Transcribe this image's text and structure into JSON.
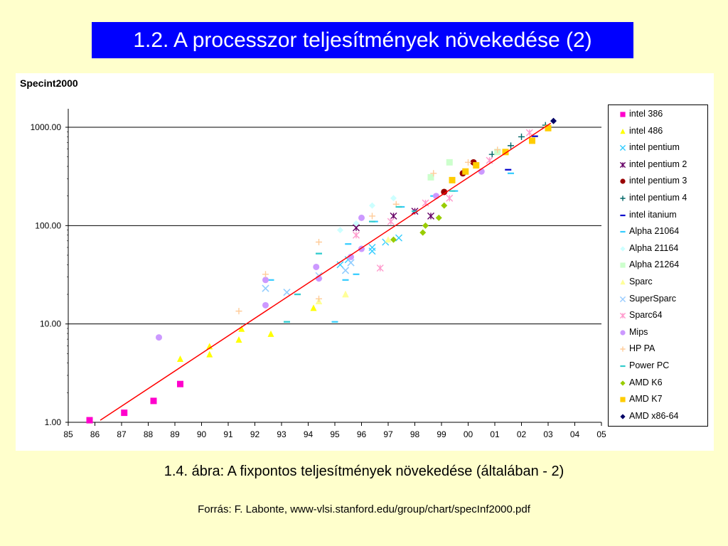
{
  "slide": {
    "title": "1.2. A processzor teljesítmények növekedése (2)",
    "caption": "1.4. ábra: A fixpontos teljesítmények növekedése (általában - 2)",
    "source": "Forrás: F. Labonte, www-vlsi.stanford.edu/group/chart/specInf2000.pdf",
    "title_bg": "#0000FF",
    "background": "#FFFFCC"
  },
  "chart_data": {
    "type": "scatter",
    "title": "Specint2000",
    "yscale": "log",
    "ylim": [
      1,
      1300
    ],
    "xlim": [
      85,
      105
    ],
    "y_ticks": [
      "1000.00",
      "100.00",
      "10.00",
      "1.00"
    ],
    "x_ticks": [
      "85",
      "86",
      "87",
      "88",
      "89",
      "90",
      "91",
      "92",
      "93",
      "94",
      "95",
      "96",
      "97",
      "98",
      "99",
      "00",
      "01",
      "02",
      "03",
      "04",
      "05"
    ],
    "grid": "horizontal",
    "legend_position": "right",
    "trend_line": {
      "color": "#FF0000",
      "x": [
        86.2,
        103.1
      ],
      "y": [
        1.05,
        1100
      ]
    },
    "series": [
      {
        "name": "intel 386",
        "marker": "square",
        "color": "#FF00CC",
        "x": [
          85.8,
          87.1,
          88.2,
          89.2
        ],
        "y": [
          1.05,
          1.25,
          1.65,
          2.45
        ]
      },
      {
        "name": "intel 486",
        "marker": "triangle",
        "color": "#FFFF00",
        "x": [
          89.2,
          90.3,
          90.3,
          91.4,
          91.5,
          92.6,
          94.2,
          94.4,
          95.4
        ],
        "y": [
          4.4,
          4.9,
          5.9,
          6.9,
          8.9,
          7.9,
          14.5,
          17,
          20
        ]
      },
      {
        "name": "intel pentium",
        "marker": "x",
        "color": "#33CCFF",
        "x": [
          92.4,
          93.2,
          95.2,
          95.4,
          95.5,
          95.6,
          96.4,
          96.4,
          96.9,
          97.4
        ],
        "y": [
          23,
          21,
          40,
          35,
          45,
          42,
          55,
          60,
          68,
          75
        ]
      },
      {
        "name": "intel pentium 2",
        "marker": "star",
        "color": "#660066",
        "x": [
          95.8,
          97.2,
          98.0,
          98.6
        ],
        "y": [
          95,
          125,
          140,
          125
        ]
      },
      {
        "name": "intel pentium 3",
        "marker": "circle",
        "color": "#990000",
        "x": [
          99.1,
          99.8,
          100.2
        ],
        "y": [
          220,
          340,
          440
        ]
      },
      {
        "name": "intel pentium 4",
        "marker": "plus",
        "color": "#006666",
        "x": [
          100.9,
          101.6,
          102.0,
          102.9
        ],
        "y": [
          530,
          650,
          800,
          1050
        ]
      },
      {
        "name": "intel itanium",
        "marker": "dash",
        "color": "#0000CC",
        "x": [
          101.5,
          102.5
        ],
        "y": [
          370,
          810
        ]
      },
      {
        "name": "Alpha 21064",
        "marker": "dash",
        "color": "#33CCFF",
        "x": [
          92.6,
          93.2,
          93.6,
          94.4,
          95.0,
          95.4,
          95.5,
          95.8,
          96.5,
          97.5,
          98.7,
          99.5,
          101.6
        ],
        "y": [
          28,
          10.5,
          20,
          52,
          10.5,
          28,
          65,
          32,
          110,
          155,
          200,
          225,
          340
        ]
      },
      {
        "name": "Alpha 21164",
        "marker": "diamond",
        "color": "#CCFFFF",
        "x": [
          95.2,
          95.8,
          96.4,
          97.2
        ],
        "y": [
          90,
          105,
          160,
          190
        ]
      },
      {
        "name": "Alpha 21264",
        "marker": "square",
        "color": "#CCFFCC",
        "x": [
          98.6,
          99.3,
          101.1
        ],
        "y": [
          310,
          440,
          560
        ]
      },
      {
        "name": "Sparc",
        "marker": "triangle",
        "color": "#FFFF99",
        "x": [
          94.4,
          95.4,
          97.0
        ],
        "y": [
          17,
          20,
          72
        ]
      },
      {
        "name": "SuperSparc",
        "marker": "x",
        "color": "#99CCFF",
        "x": [
          92.4,
          93.2,
          94.4,
          95.4,
          95.6
        ],
        "y": [
          23,
          21,
          31,
          35,
          42
        ]
      },
      {
        "name": "Sparc64",
        "marker": "star",
        "color": "#FF99CC",
        "x": [
          95.8,
          96.7,
          97.1,
          98.4,
          99.3,
          100.8,
          102.3
        ],
        "y": [
          80,
          37,
          110,
          170,
          190,
          460,
          880
        ]
      },
      {
        "name": "Mips",
        "marker": "circle",
        "color": "#CC99FF",
        "x": [
          88.4,
          92.4,
          92.4,
          94.3,
          94.4,
          95.6,
          96.0,
          96.0,
          98.8,
          100.5
        ],
        "y": [
          7.3,
          15.5,
          28,
          38,
          29,
          48,
          58,
          120,
          200,
          355
        ]
      },
      {
        "name": "HP PA",
        "marker": "plus",
        "color": "#FFCC99",
        "x": [
          91.4,
          92.4,
          94.4,
          94.4,
          96.4,
          97.3,
          98.7,
          100.0,
          101.1
        ],
        "y": [
          13.5,
          32,
          18,
          68,
          125,
          165,
          340,
          440,
          590
        ]
      },
      {
        "name": "Power PC",
        "marker": "dash",
        "color": "#33CCCC",
        "x": [
          93.2,
          93.6,
          94.4,
          96.4,
          97.4,
          98.0,
          99.4
        ],
        "y": [
          10.5,
          20,
          52,
          110,
          155,
          140,
          225
        ]
      },
      {
        "name": "AMD K6",
        "marker": "diamond",
        "color": "#99CC00",
        "x": [
          97.2,
          98.3,
          98.4,
          98.9,
          99.1
        ],
        "y": [
          72,
          85,
          100,
          120,
          160
        ]
      },
      {
        "name": "AMD K7",
        "marker": "square",
        "color": "#FFCC00",
        "x": [
          99.4,
          99.9,
          100.3,
          101.4,
          102.4,
          103.0
        ],
        "y": [
          290,
          355,
          410,
          560,
          730,
          980
        ]
      },
      {
        "name": "AMD x86-64",
        "marker": "diamond",
        "color": "#000066",
        "x": [
          103.2
        ],
        "y": [
          1160
        ]
      }
    ]
  }
}
